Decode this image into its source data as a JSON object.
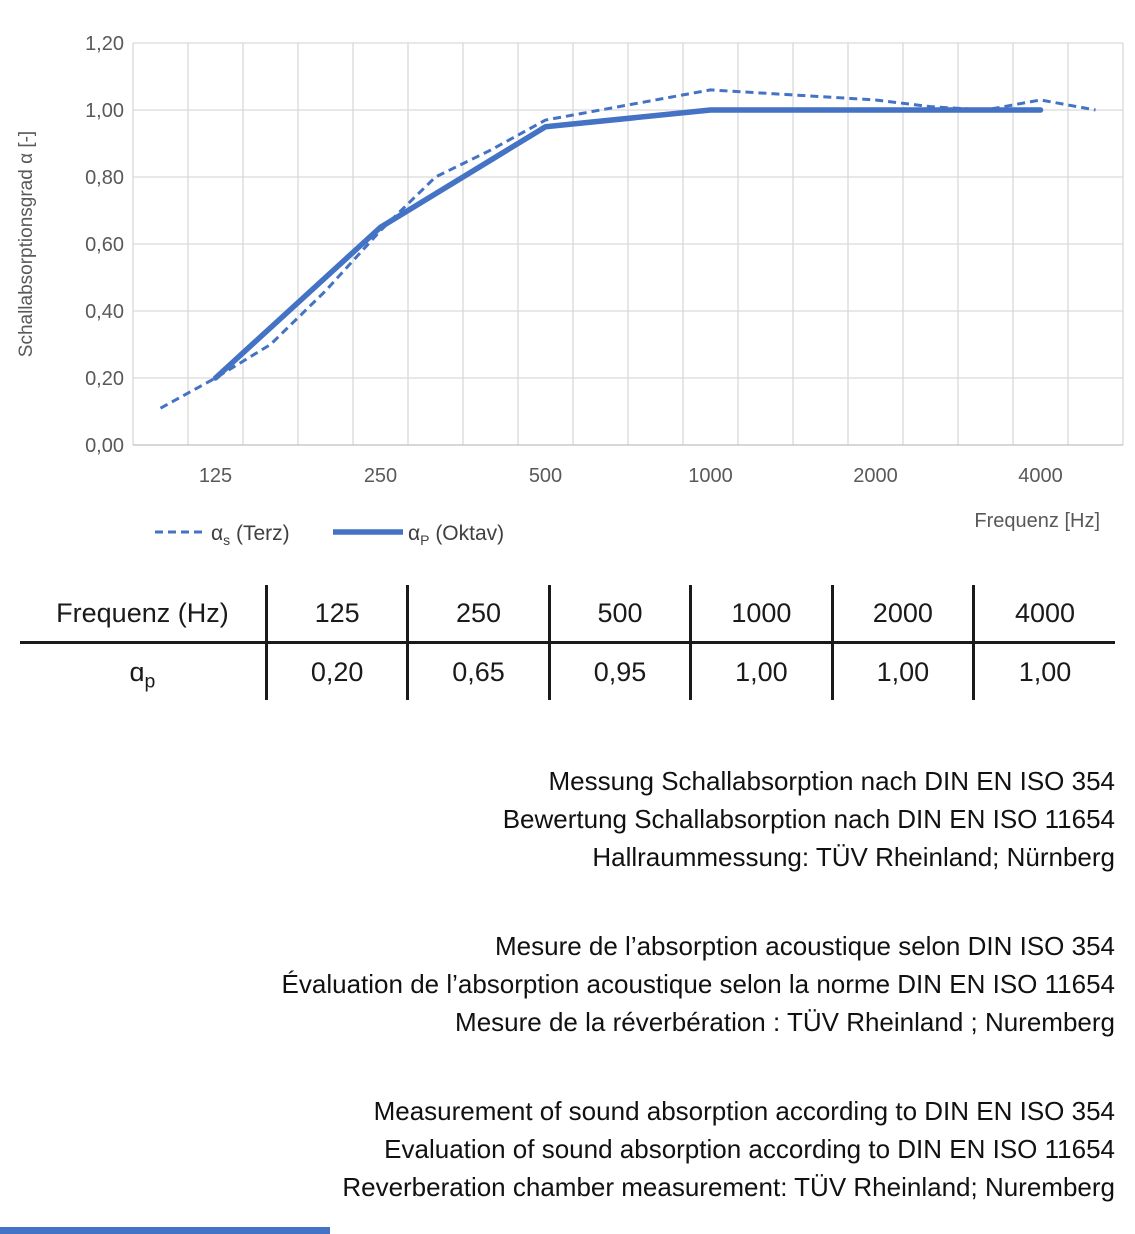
{
  "chart_data": {
    "type": "line",
    "title": "",
    "ylabel": "Schallabsorptionsgrad α [-]",
    "xlabel": "Frequenz [Hz]",
    "ylim": [
      0,
      1.2
    ],
    "ytick_labels": [
      "0,00",
      "0,20",
      "0,40",
      "0,60",
      "0,80",
      "1,00",
      "1,20"
    ],
    "grid": true,
    "x_scale": "third-octave-band-categories",
    "categories_all": [
      100,
      125,
      160,
      200,
      250,
      315,
      400,
      500,
      630,
      800,
      1000,
      1250,
      1600,
      2000,
      2500,
      3150,
      4000,
      5000
    ],
    "xtick_bands": [
      125,
      250,
      500,
      1000,
      2000,
      4000
    ],
    "xtick_labels": [
      "125",
      "250",
      "500",
      "1000",
      "2000",
      "4000"
    ],
    "legend_position": "bottom-left",
    "series": [
      {
        "name": "αs (Terz)",
        "style": "dashed",
        "color": "#4472C4",
        "x": [
          100,
          125,
          160,
          200,
          250,
          315,
          400,
          500,
          630,
          800,
          1000,
          1250,
          1600,
          2000,
          2500,
          3150,
          4000,
          5000
        ],
        "values": [
          0.11,
          0.2,
          0.3,
          0.46,
          0.64,
          0.8,
          0.88,
          0.97,
          1.0,
          1.03,
          1.06,
          1.05,
          1.04,
          1.03,
          1.01,
          1.0,
          1.03,
          1.0
        ]
      },
      {
        "name": "αP (Oktav)",
        "style": "solid",
        "color": "#4472C4",
        "x": [
          125,
          250,
          500,
          1000,
          2000,
          4000
        ],
        "values": [
          0.2,
          0.65,
          0.95,
          1.0,
          1.0,
          1.0
        ]
      }
    ]
  },
  "legend": {
    "items": [
      {
        "sym": "α",
        "sub": "s",
        "rest": " (Terz)"
      },
      {
        "sym": "α",
        "sub": "P",
        "rest": " (Oktav)"
      }
    ]
  },
  "table": {
    "header": [
      "Frequenz (Hz)",
      "125",
      "250",
      "500",
      "1000",
      "2000",
      "4000"
    ],
    "row_label": {
      "base": "ɑ",
      "sub": "p"
    },
    "values": [
      "0,20",
      "0,65",
      "0,95",
      "1,00",
      "1,00",
      "1,00"
    ]
  },
  "notes": {
    "de": [
      "Messung Schallabsorption nach DIN EN ISO 354",
      "Bewertung Schallabsorption nach DIN EN ISO 11654",
      "Hallraummessung: TÜV Rheinland; Nürnberg"
    ],
    "fr": [
      "Mesure de l’absorption acoustique selon DIN ISO 354",
      "Évaluation de l’absorption acoustique selon la norme DIN EN ISO 11654",
      "Mesure de la réverbération : TÜV Rheinland ; Nuremberg"
    ],
    "en": [
      "Measurement of sound absorption according to DIN EN ISO 354",
      "Evaluation of sound absorption according to DIN EN ISO 11654",
      "Reverberation chamber measurement: TÜV Rheinland; Nuremberg"
    ]
  },
  "colors": {
    "line_blue": "#4472C4",
    "gridline": "#D9D9D9",
    "axis_line": "#BFBFBF",
    "axis_text": "#595959",
    "legend_text": "#3F3F3F",
    "body_text": "#1A1A1A"
  }
}
